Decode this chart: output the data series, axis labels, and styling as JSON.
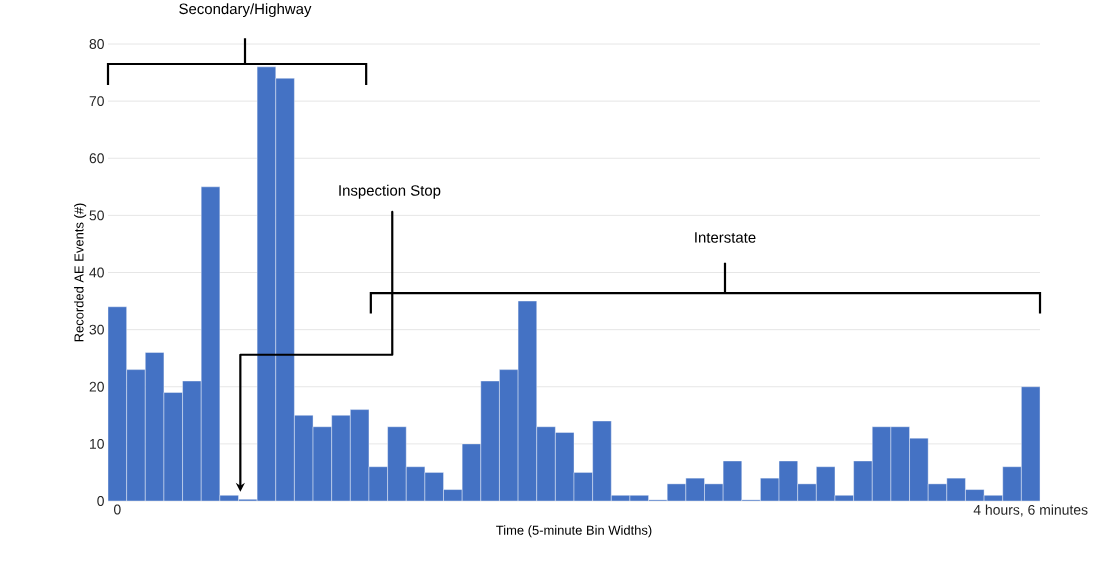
{
  "chart_data": {
    "type": "bar",
    "xlabel": "Time (5-minute Bin Widths)",
    "ylabel": "Recorded AE Events (#)",
    "categories": [
      "0",
      null,
      null,
      null,
      null,
      null,
      null,
      null,
      null,
      null,
      null,
      null,
      null,
      null,
      null,
      null,
      null,
      null,
      null,
      null,
      null,
      null,
      null,
      null,
      null,
      null,
      null,
      null,
      null,
      null,
      null,
      null,
      null,
      null,
      null,
      null,
      null,
      null,
      null,
      null,
      null,
      null,
      null,
      null,
      null,
      null,
      null,
      null,
      null,
      "4 hours, 6 minutes"
    ],
    "values": [
      34,
      23,
      26,
      19,
      21,
      55,
      1,
      0.3,
      76,
      74,
      15,
      13,
      15,
      16,
      6,
      13,
      6,
      5,
      2,
      10,
      21,
      23,
      35,
      13,
      12,
      5,
      14,
      1,
      1,
      0.2,
      3,
      4,
      3,
      7,
      0.2,
      4,
      7,
      3,
      6,
      1,
      7,
      13,
      13,
      11,
      3,
      4,
      2,
      1,
      6,
      20
    ],
    "color": "#4472c4",
    "ylim": [
      0,
      80
    ],
    "yticks": [
      0,
      10,
      20,
      30,
      40,
      50,
      60,
      70,
      80
    ],
    "grid": "y",
    "annotations": [
      "Secondary/Highway",
      "Inspection Stop",
      "Interstate"
    ]
  }
}
